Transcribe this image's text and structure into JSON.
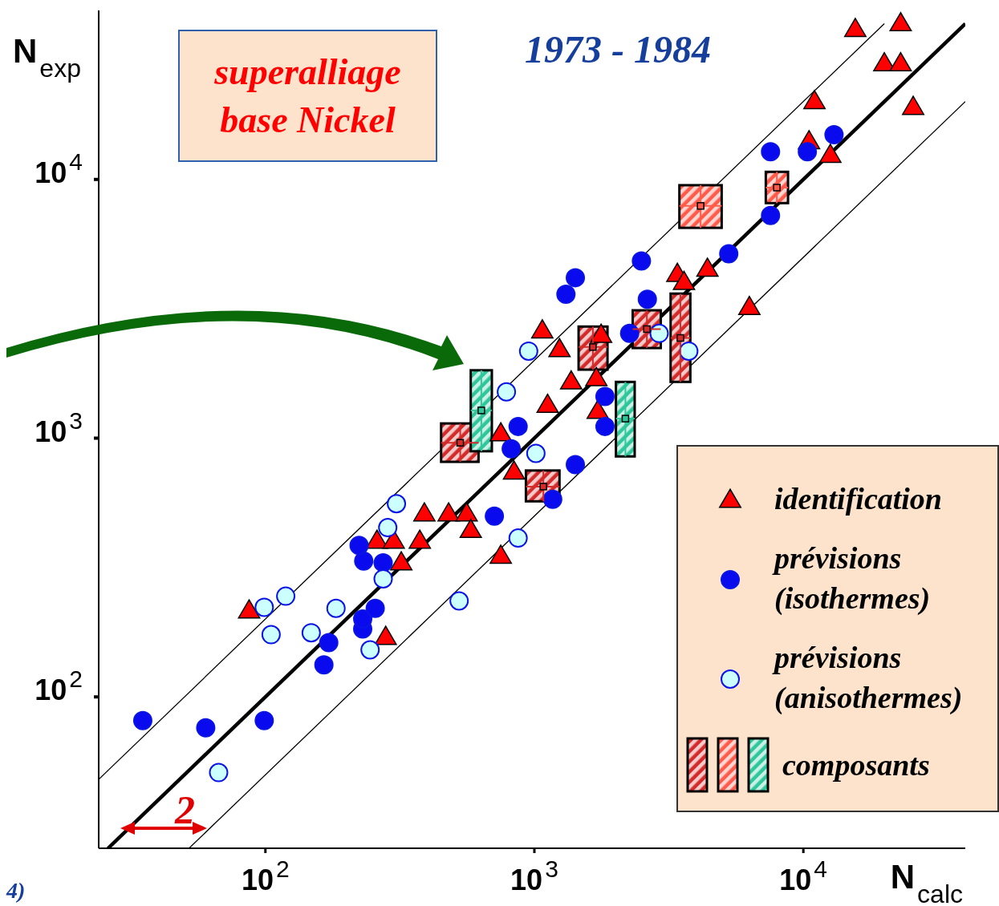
{
  "chart_data": {
    "type": "scatter",
    "title": "1973 - 1984",
    "xlabel": "N$_{calc}$",
    "ylabel": "N$_{exp}$",
    "log": "xy",
    "xlim": [
      24,
      40000
    ],
    "ylim": [
      26,
      45000
    ],
    "xticks": [
      {
        "value": 100,
        "label": "10$^{2}$"
      },
      {
        "value": 1000,
        "label": "10$^{3}$"
      },
      {
        "value": 10000,
        "label": "10$^{4}$"
      }
    ],
    "yticks": [
      {
        "value": 100,
        "label": "10$^{2}$"
      },
      {
        "value": 1000,
        "label": "10$^{3}$"
      },
      {
        "value": 10000,
        "label": "10$^{4}$"
      }
    ],
    "legend": "bottom right",
    "annotations": [
      "superalliage base Nickel",
      "2",
      "4)"
    ],
    "series": [
      {
        "type": "line",
        "color": "#000000",
        "marker": "none",
        "x": [
          26,
          40000
        ],
        "values": [
          26,
          40000
        ]
      },
      {
        "type": "line",
        "color": "#000000",
        "marker": "none",
        "x": [
          24,
          20000
        ],
        "values": [
          48,
          40000
        ]
      },
      {
        "type": "line",
        "color": "#000000",
        "marker": "none",
        "x": [
          52,
          40000
        ],
        "values": [
          26,
          20000
        ]
      },
      {
        "name": "identification",
        "color": "#ff0000",
        "marker": "triangle",
        "x": [
          87,
          280,
          260,
          300,
          320,
          375,
          390,
          480,
          560,
          580,
          750,
          750,
          840,
          1120,
          1070,
          1240,
          1370,
          1770,
          1700,
          1720,
          3400,
          3600,
          4400,
          6300,
          10500,
          12600,
          11000,
          15600,
          23000,
          20000,
          23000,
          25600
        ],
        "values": [
          215,
          170,
          400,
          400,
          330,
          400,
          510,
          510,
          510,
          440,
          350,
          1040,
          740,
          1340,
          2600,
          2200,
          1650,
          2500,
          1700,
          1270,
          4300,
          4000,
          4500,
          3200,
          14000,
          12400,
          20000,
          38000,
          40000,
          28000,
          28000,
          19000
        ]
      },
      {
        "name": "prévisions (isothermes)",
        "color": "#0a0aee",
        "marker": "circle",
        "x": [
          35,
          60,
          99,
          165,
          172,
          230,
          230,
          256,
          232,
          223,
          274,
          710,
          820,
          870,
          1170,
          1420,
          1310,
          1420,
          1830,
          1830,
          2260,
          2500,
          2630,
          5280,
          7550,
          7550,
          10350,
          13000
        ],
        "values": [
          81,
          76,
          81,
          133,
          162,
          183,
          200,
          220,
          335,
          385,
          330,
          500,
          910,
          1110,
          580,
          790,
          3600,
          4170,
          1450,
          1110,
          2540,
          4840,
          3440,
          5160,
          7260,
          12800,
          12800,
          14900
        ]
      },
      {
        "name": "prévisions (anisothermes)",
        "color": "#ccffff",
        "marker": "circle",
        "x": [
          67,
          99,
          105,
          119,
          148,
          183,
          245,
          274,
          285,
          307,
          525,
          870,
          1013,
          787,
          952,
          2910,
          3750
        ],
        "values": [
          51,
          222,
          174,
          245,
          177,
          220,
          152,
          286,
          451,
          558,
          235,
          411,
          873,
          1510,
          2170,
          2540,
          2170
        ]
      },
      {
        "name": "composants",
        "marker": "square",
        "colors": [
          "#d42a2a",
          "#d42a2a",
          "#d42a2a",
          "#d42a2a",
          "#d42a2a",
          "#ff5a4a",
          "#ff5a4a",
          "#2ec79b",
          "#2ec79b"
        ],
        "x": [
          530,
          1080,
          1650,
          2620,
          3490,
          4150,
          7970,
          635,
          2180
        ],
        "values": [
          960,
          650,
          2250,
          2640,
          2440,
          7900,
          9300,
          1280,
          1190
        ],
        "xerrors": [
          [
            450,
            620
          ],
          [
            930,
            1240
          ],
          [
            1460,
            1870
          ],
          [
            2320,
            2950
          ],
          [
            3210,
            3800
          ],
          [
            3460,
            4970
          ],
          [
            7250,
            8770
          ],
          [
            580,
            695
          ],
          [
            2010,
            2360
          ]
        ],
        "errors": [
          [
            810,
            1140
          ],
          [
            570,
            750
          ],
          [
            1840,
            2700
          ],
          [
            2230,
            3120
          ],
          [
            1650,
            3620
          ],
          [
            6500,
            9500
          ],
          [
            8100,
            10700
          ],
          [
            890,
            1830
          ],
          [
            850,
            1650
          ]
        ]
      }
    ]
  }
}
